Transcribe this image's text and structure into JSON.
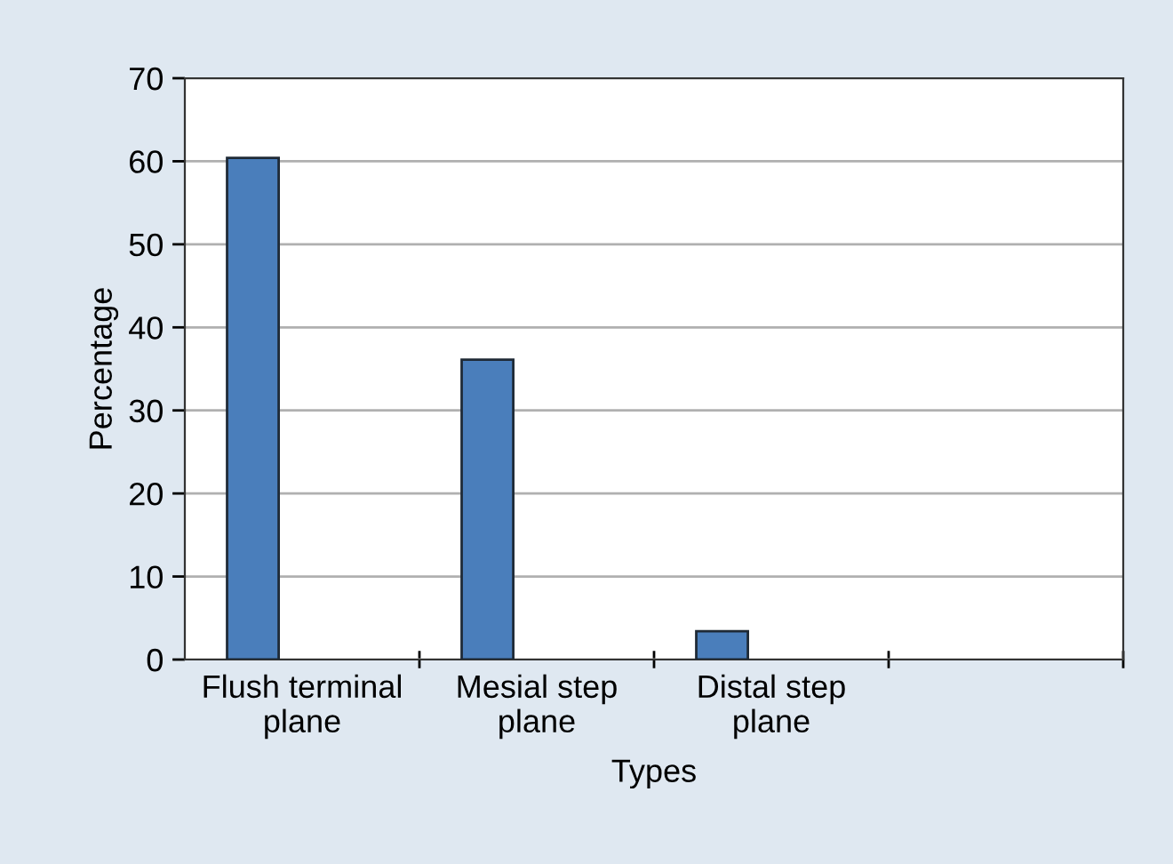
{
  "chart_data": {
    "type": "bar",
    "xlabel": "Types",
    "ylabel": "Percentage",
    "categories": [
      "Flush terminal\nplane",
      "Mesial step\nplane",
      "Distal step\nplane",
      null
    ],
    "values": [
      60.4,
      36.1,
      3.4,
      null
    ],
    "color": "#4a7ebb",
    "ylim": [
      0,
      70
    ],
    "yticks": [
      0,
      10,
      20,
      30,
      40,
      50,
      60,
      70
    ],
    "grid": "y",
    "legend": false
  }
}
